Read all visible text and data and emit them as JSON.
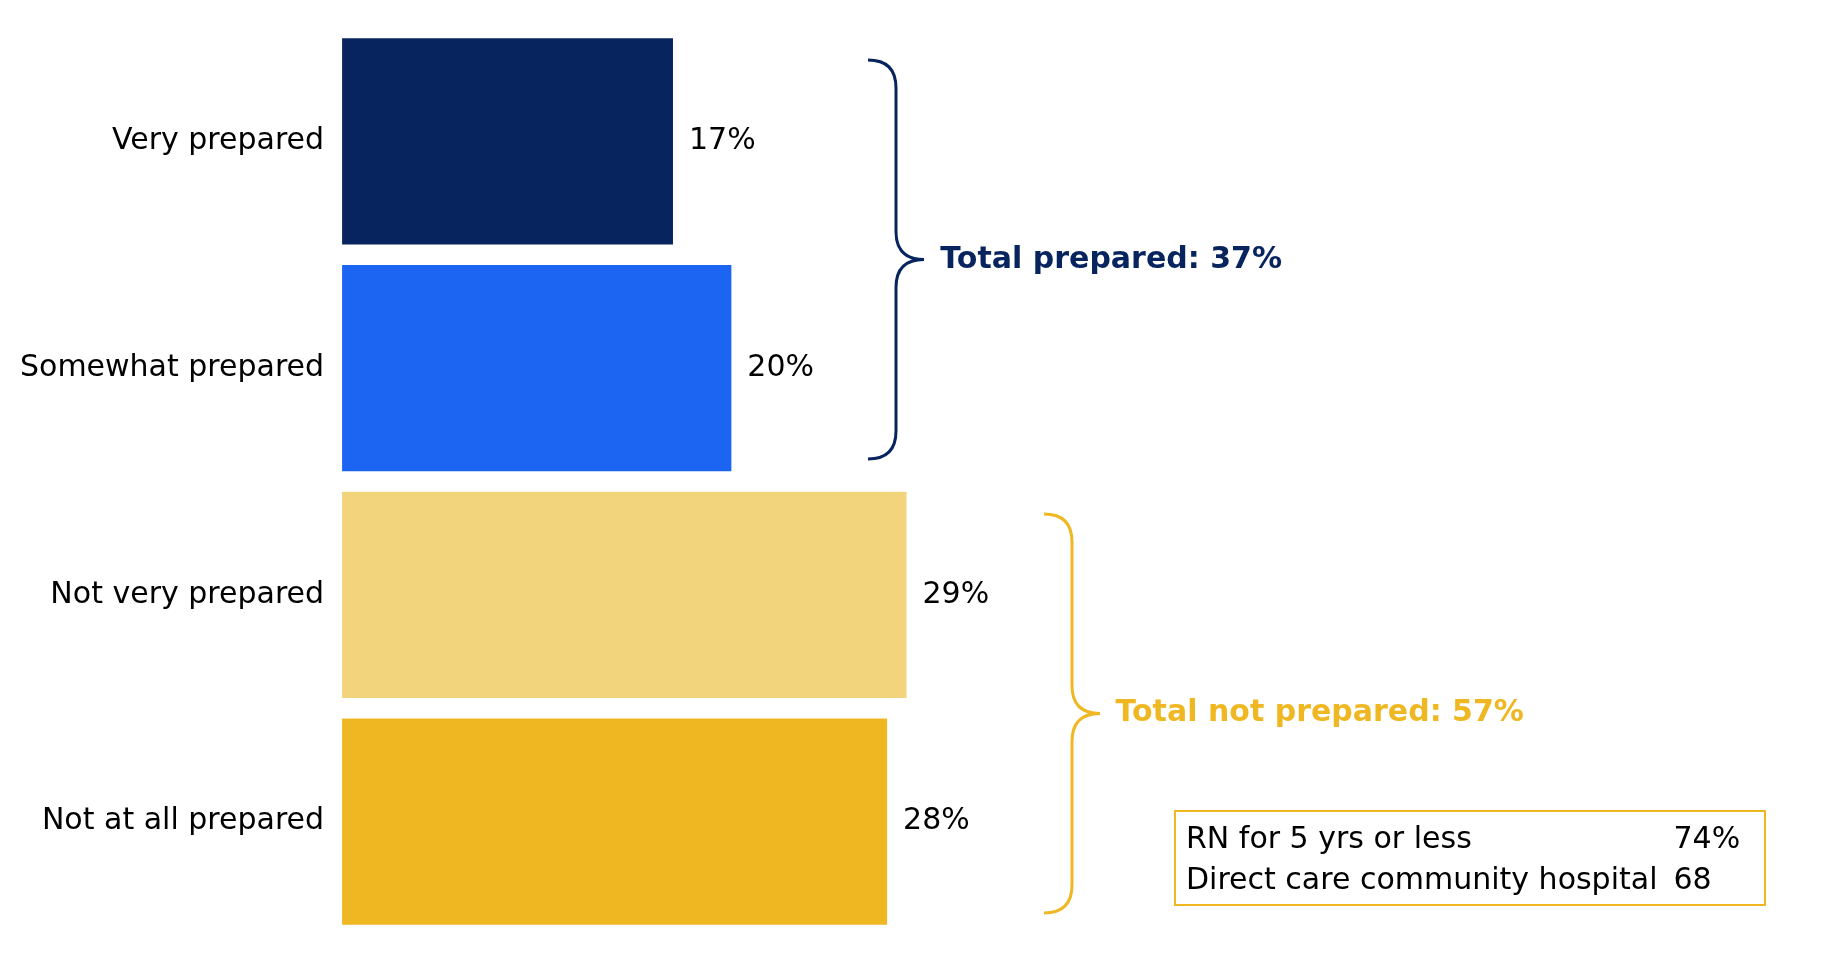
{
  "chart_data": {
    "type": "bar",
    "orientation": "horizontal",
    "categories": [
      "Very prepared",
      "Somewhat prepared",
      "Not very prepared",
      "Not at all prepared"
    ],
    "values": [
      17,
      20,
      29,
      28
    ],
    "colors": [
      "#08245e",
      "#1c64f2",
      "#f2d47c",
      "#efb822"
    ],
    "value_labels": [
      "17%",
      "20%",
      "29%",
      "28%"
    ],
    "tick_labels": "y",
    "annotations": [
      "Total prepared: 37%",
      "Total not prepared: 57%",
      "RN for 5 yrs or less",
      "74%",
      "Direct care community hospital",
      "68"
    ]
  }
}
